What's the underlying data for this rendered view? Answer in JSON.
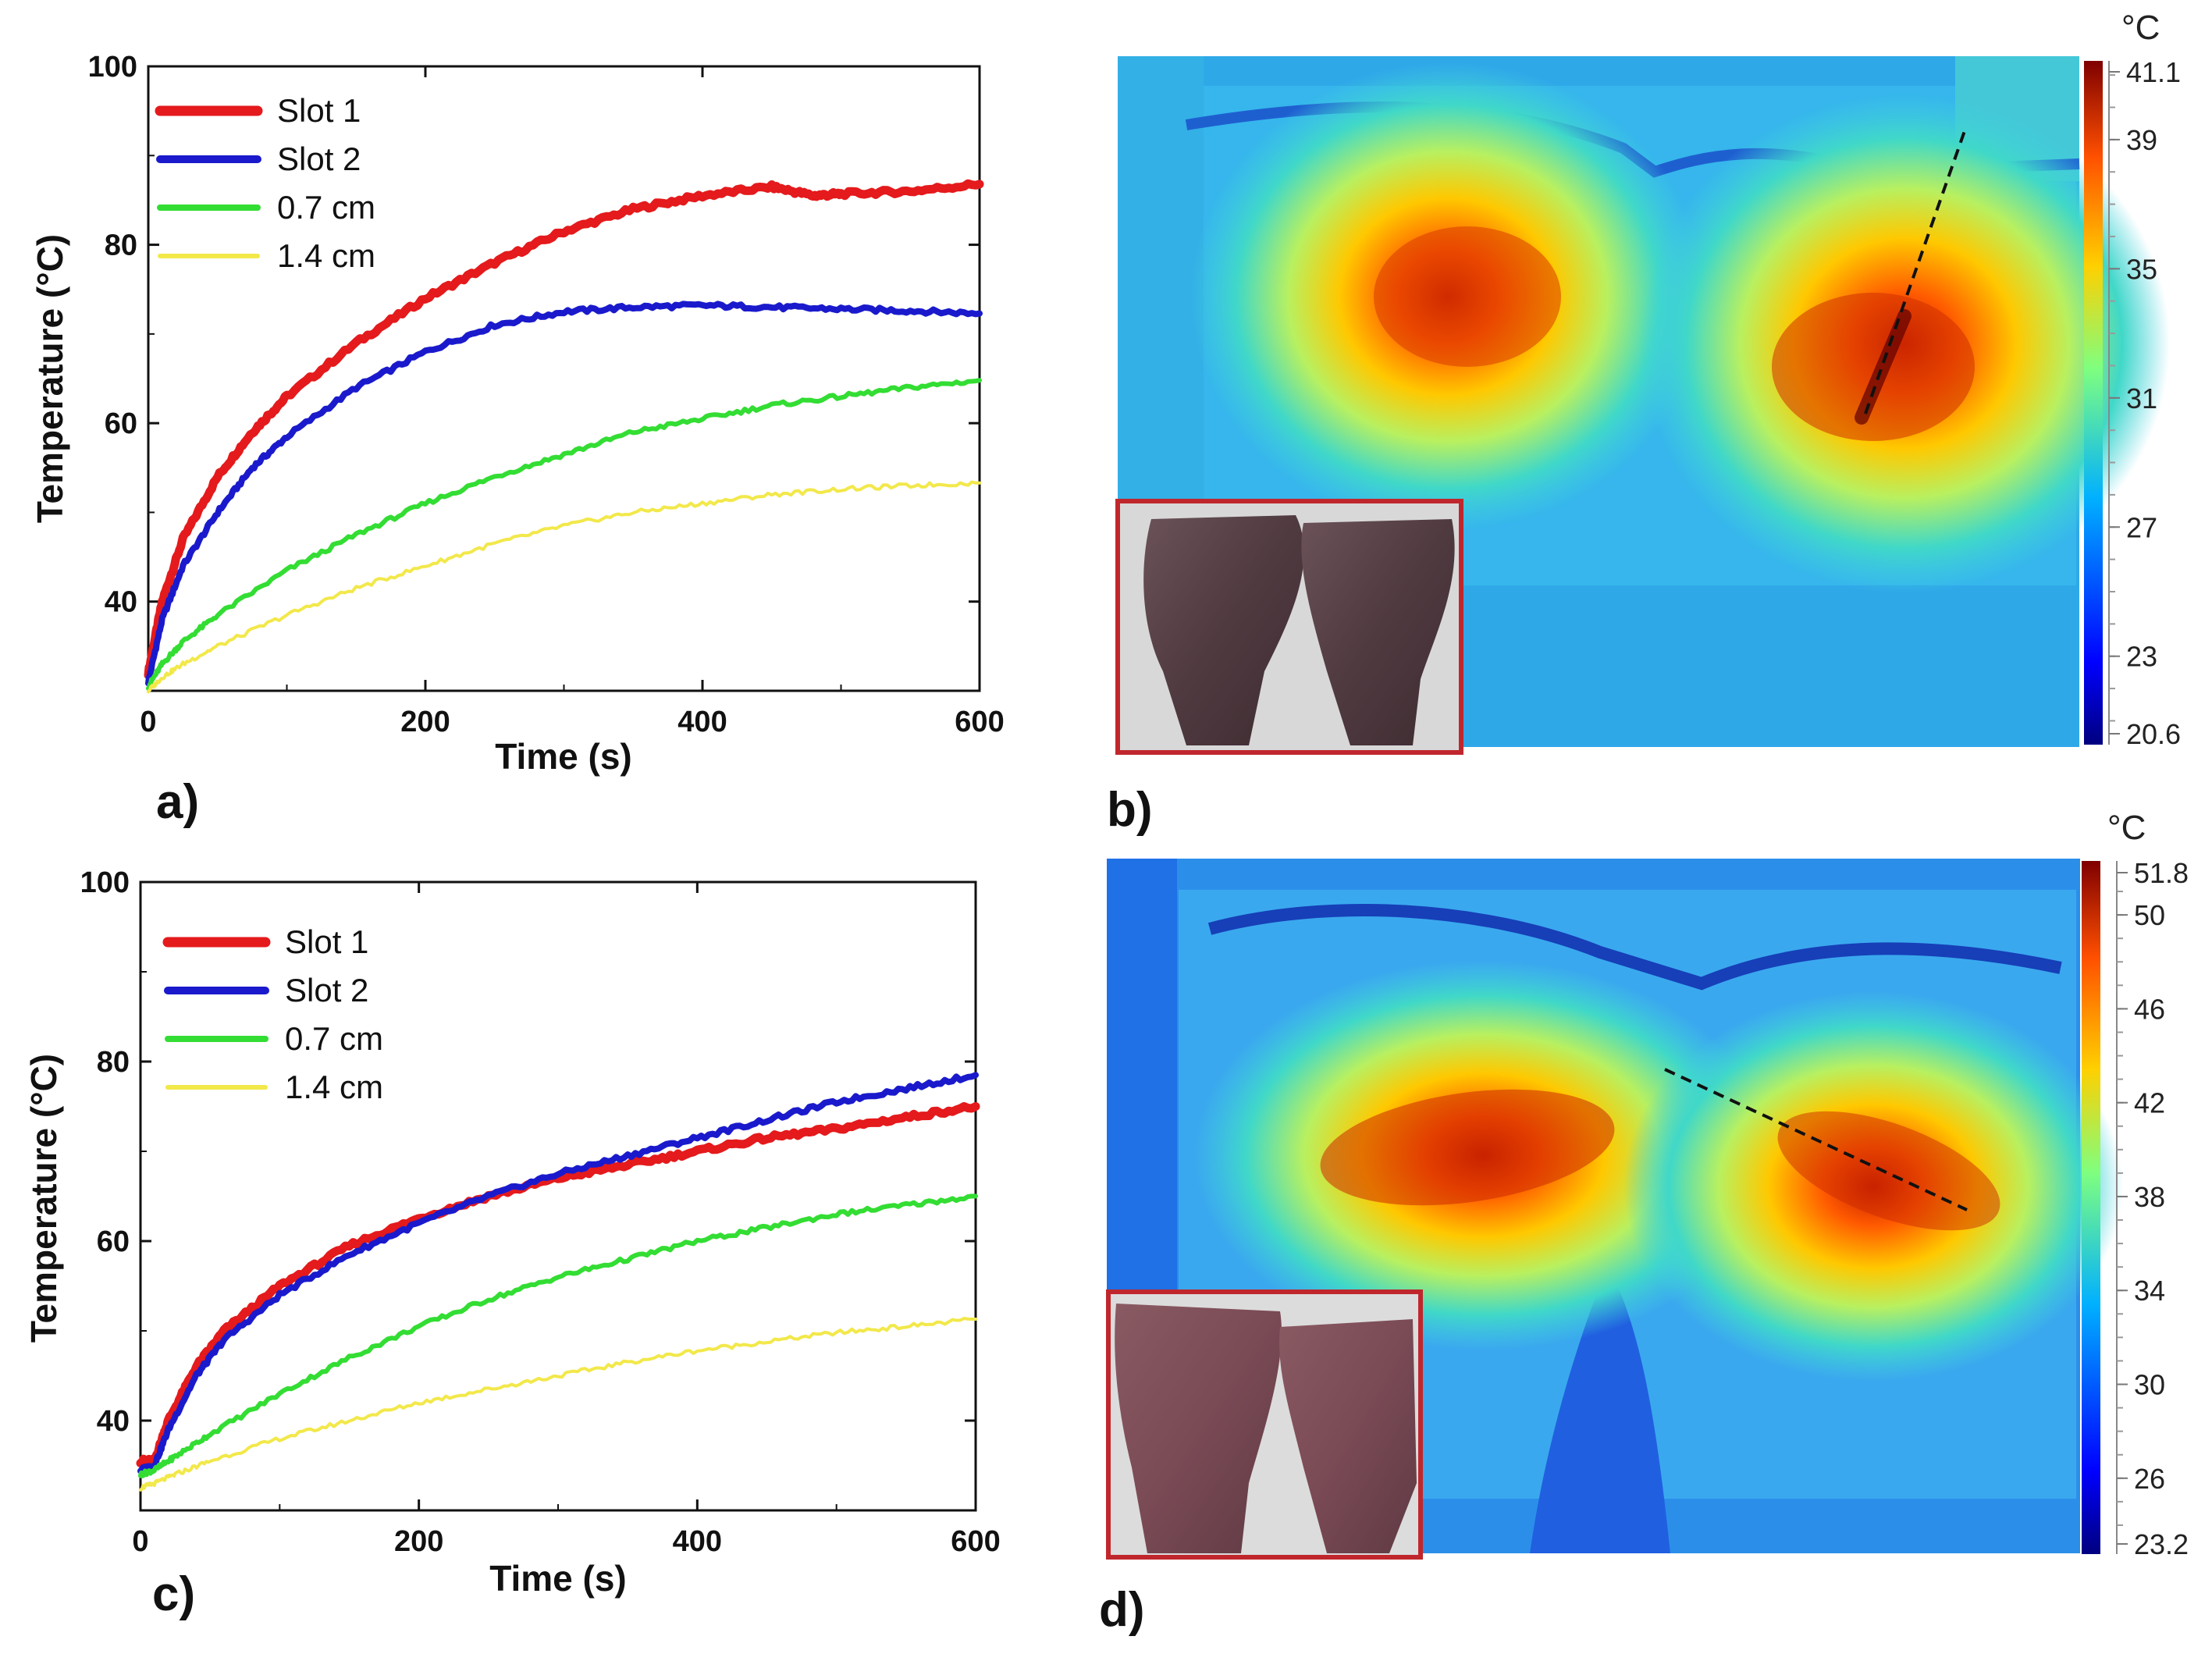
{
  "chart_data": [
    {
      "panel": "a)",
      "type": "line",
      "xlabel": "Time (s)",
      "ylabel": "Temperature (°C)",
      "xlim": [
        0,
        600
      ],
      "ylim": [
        30,
        100
      ],
      "xticks": [
        0,
        200,
        400,
        600
      ],
      "yticks": [
        40,
        60,
        80,
        100
      ],
      "legend_position": "top-left",
      "series": [
        {
          "name": "Slot 1",
          "color": "#e41a1c",
          "x": [
            0,
            10,
            25,
            50,
            75,
            100,
            150,
            200,
            250,
            300,
            350,
            400,
            450,
            480,
            500,
            550,
            600
          ],
          "y": [
            32,
            40,
            47,
            54,
            59,
            63,
            69,
            74,
            78,
            81.5,
            84,
            85.5,
            86.5,
            85.5,
            85.7,
            86,
            86.8
          ]
        },
        {
          "name": "Slot 2",
          "color": "#1a1acc",
          "x": [
            0,
            10,
            25,
            50,
            75,
            100,
            150,
            200,
            250,
            300,
            350,
            400,
            450,
            500,
            550,
            600
          ],
          "y": [
            31,
            38,
            44,
            50,
            55,
            58.5,
            64,
            68,
            71,
            72.5,
            73,
            73.2,
            73,
            72.8,
            72.6,
            72.3
          ]
        },
        {
          "name": "0.7 cm",
          "color": "#33dd33",
          "x": [
            0,
            10,
            25,
            50,
            100,
            150,
            200,
            250,
            300,
            350,
            400,
            450,
            500,
            550,
            600
          ],
          "y": [
            30.5,
            33,
            35.5,
            38.5,
            43.5,
            47.5,
            51,
            54,
            56.5,
            59,
            60.5,
            62,
            63,
            64,
            64.8
          ]
        },
        {
          "name": "1.4 cm",
          "color": "#f2e84a",
          "x": [
            0,
            10,
            25,
            50,
            100,
            150,
            200,
            250,
            300,
            350,
            400,
            450,
            500,
            550,
            600
          ],
          "y": [
            30,
            31.5,
            33,
            35,
            38.5,
            41.5,
            44,
            46.5,
            48.5,
            50,
            51,
            52,
            52.6,
            53,
            53.3
          ]
        }
      ]
    },
    {
      "panel": "b)",
      "type": "heatmap",
      "colorbar_unit": "°C",
      "colorbar_range": [
        20.6,
        41.1
      ],
      "colorbar_labels": [
        "41.1",
        "39",
        "35",
        "31",
        "27",
        "23",
        "20.6"
      ]
    },
    {
      "panel": "c)",
      "type": "line",
      "xlabel": "Time (s)",
      "ylabel": "Temperature (°C)",
      "xlim": [
        0,
        600
      ],
      "ylim": [
        30,
        100
      ],
      "xticks": [
        0,
        200,
        400,
        600
      ],
      "yticks": [
        40,
        60,
        80,
        100
      ],
      "legend_position": "top-left",
      "series": [
        {
          "name": "Slot 1",
          "color": "#e41a1c",
          "x": [
            0,
            10,
            20,
            40,
            60,
            100,
            150,
            200,
            250,
            300,
            350,
            400,
            450,
            500,
            550,
            600
          ],
          "y": [
            35.5,
            35.5,
            40,
            46,
            50,
            55,
            59.5,
            62.5,
            65,
            67,
            68.5,
            70,
            71.5,
            72.5,
            73.8,
            75
          ]
        },
        {
          "name": "Slot 2",
          "color": "#1a1acc",
          "x": [
            0,
            10,
            20,
            40,
            60,
            100,
            150,
            200,
            250,
            300,
            350,
            400,
            450,
            500,
            550,
            600
          ],
          "y": [
            34.5,
            35,
            39,
            45,
            49,
            54,
            58.5,
            62,
            65,
            67.5,
            69.5,
            71.5,
            73.5,
            75.5,
            77,
            78.5
          ]
        },
        {
          "name": "0.7 cm",
          "color": "#33dd33",
          "x": [
            0,
            10,
            25,
            50,
            100,
            150,
            200,
            250,
            300,
            350,
            400,
            450,
            500,
            550,
            600
          ],
          "y": [
            34,
            34.5,
            36,
            38.5,
            43,
            47,
            50.5,
            53.5,
            56,
            58,
            60,
            61.5,
            63,
            64,
            65
          ]
        },
        {
          "name": "1.4 cm",
          "color": "#f2e84a",
          "x": [
            0,
            10,
            25,
            50,
            100,
            150,
            200,
            250,
            300,
            350,
            400,
            450,
            500,
            550,
            600
          ],
          "y": [
            32.5,
            33,
            34,
            35.5,
            38,
            40,
            42,
            43.5,
            45,
            46.5,
            47.8,
            48.8,
            49.8,
            50.5,
            51.3
          ]
        }
      ]
    },
    {
      "panel": "d)",
      "type": "heatmap",
      "colorbar_unit": "°C",
      "colorbar_range": [
        23.2,
        51.8
      ],
      "colorbar_labels": [
        "51.8",
        "50",
        "46",
        "42",
        "38",
        "34",
        "30",
        "26",
        "23.2"
      ]
    }
  ]
}
